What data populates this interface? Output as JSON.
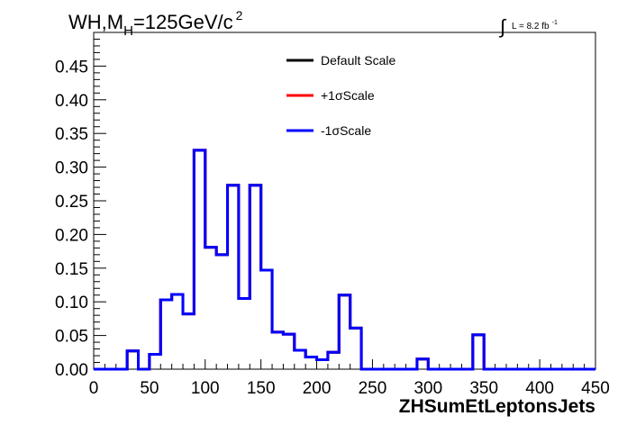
{
  "chart_data": {
    "type": "line",
    "title_main": "WH,M",
    "title_sub": "H",
    "title_rest": "=125GeV/c",
    "title_sup": "2",
    "lumi_text": "L = 8.2 fb",
    "lumi_sup": "-1",
    "integral_symbol": "∫",
    "xlabel": "ZHSumEtLeptonsJets",
    "xlim": [
      0,
      450
    ],
    "ylim": [
      0,
      0.5
    ],
    "x_ticks": [
      0,
      50,
      100,
      150,
      200,
      250,
      300,
      350,
      400,
      450
    ],
    "y_ticks": [
      0.0,
      0.05,
      0.1,
      0.15,
      0.2,
      0.25,
      0.3,
      0.35,
      0.4,
      0.45
    ],
    "y_tick_labels": [
      "0.00",
      "0.05",
      "0.10",
      "0.15",
      "0.20",
      "0.25",
      "0.30",
      "0.35",
      "0.40",
      "0.45"
    ],
    "bin_edges": [
      0,
      10,
      20,
      30,
      40,
      50,
      60,
      70,
      80,
      90,
      100,
      110,
      120,
      130,
      140,
      150,
      160,
      170,
      180,
      190,
      200,
      210,
      220,
      230,
      240,
      250,
      260,
      270,
      280,
      290,
      300,
      310,
      320,
      330,
      340,
      350,
      360,
      370,
      380,
      390,
      400,
      410,
      420,
      430,
      440,
      450
    ],
    "legend_position": "top-center",
    "series": [
      {
        "name": "Default Scale",
        "color": "#000000",
        "values": [
          0,
          0,
          0,
          0.027,
          0,
          0.022,
          0.103,
          0.111,
          0.082,
          0.325,
          0.181,
          0.17,
          0.273,
          0.105,
          0.273,
          0.147,
          0.055,
          0.052,
          0.028,
          0.018,
          0.014,
          0.025,
          0.11,
          0.061,
          0,
          0,
          0,
          0,
          0,
          0.015,
          0,
          0,
          0,
          0,
          0.051,
          0,
          0,
          0,
          0,
          0,
          0,
          0,
          0,
          0,
          0
        ]
      },
      {
        "name": "+1σScale",
        "color": "#ff0000",
        "values": [
          0,
          0,
          0,
          0.027,
          0,
          0.022,
          0.103,
          0.111,
          0.082,
          0.325,
          0.181,
          0.17,
          0.273,
          0.105,
          0.273,
          0.147,
          0.055,
          0.052,
          0.028,
          0.018,
          0.014,
          0.025,
          0.11,
          0.061,
          0,
          0,
          0,
          0,
          0,
          0.015,
          0,
          0,
          0,
          0,
          0.051,
          0,
          0,
          0,
          0,
          0,
          0,
          0,
          0,
          0,
          0
        ]
      },
      {
        "name": "-1σScale",
        "color": "#0000ff",
        "values": [
          0,
          0,
          0,
          0.027,
          0,
          0.022,
          0.103,
          0.111,
          0.082,
          0.325,
          0.181,
          0.17,
          0.273,
          0.105,
          0.273,
          0.147,
          0.055,
          0.052,
          0.028,
          0.018,
          0.014,
          0.025,
          0.11,
          0.061,
          0,
          0,
          0,
          0,
          0,
          0.015,
          0,
          0,
          0,
          0,
          0.051,
          0,
          0,
          0,
          0,
          0,
          0,
          0,
          0,
          0,
          0
        ]
      }
    ]
  }
}
